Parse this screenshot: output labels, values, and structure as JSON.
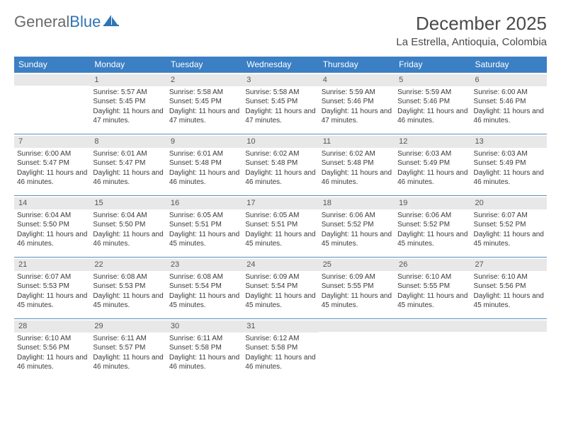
{
  "logo": {
    "text1": "General",
    "text2": "Blue"
  },
  "header": {
    "month_title": "December 2025",
    "location": "La Estrella, Antioquia, Colombia"
  },
  "colors": {
    "header_bg": "#3b7fc4",
    "header_text": "#ffffff",
    "row_border": "#5a8fc0",
    "daynum_bg": "#e8e8e8",
    "text": "#3a3a3a",
    "logo_gray": "#6a6a6a",
    "logo_blue": "#2f74b5",
    "page_bg": "#ffffff"
  },
  "day_headers": [
    "Sunday",
    "Monday",
    "Tuesday",
    "Wednesday",
    "Thursday",
    "Friday",
    "Saturday"
  ],
  "weeks": [
    [
      {
        "day": "",
        "sunrise": "",
        "sunset": "",
        "daylight": ""
      },
      {
        "day": "1",
        "sunrise": "Sunrise: 5:57 AM",
        "sunset": "Sunset: 5:45 PM",
        "daylight": "Daylight: 11 hours and 47 minutes."
      },
      {
        "day": "2",
        "sunrise": "Sunrise: 5:58 AM",
        "sunset": "Sunset: 5:45 PM",
        "daylight": "Daylight: 11 hours and 47 minutes."
      },
      {
        "day": "3",
        "sunrise": "Sunrise: 5:58 AM",
        "sunset": "Sunset: 5:45 PM",
        "daylight": "Daylight: 11 hours and 47 minutes."
      },
      {
        "day": "4",
        "sunrise": "Sunrise: 5:59 AM",
        "sunset": "Sunset: 5:46 PM",
        "daylight": "Daylight: 11 hours and 47 minutes."
      },
      {
        "day": "5",
        "sunrise": "Sunrise: 5:59 AM",
        "sunset": "Sunset: 5:46 PM",
        "daylight": "Daylight: 11 hours and 46 minutes."
      },
      {
        "day": "6",
        "sunrise": "Sunrise: 6:00 AM",
        "sunset": "Sunset: 5:46 PM",
        "daylight": "Daylight: 11 hours and 46 minutes."
      }
    ],
    [
      {
        "day": "7",
        "sunrise": "Sunrise: 6:00 AM",
        "sunset": "Sunset: 5:47 PM",
        "daylight": "Daylight: 11 hours and 46 minutes."
      },
      {
        "day": "8",
        "sunrise": "Sunrise: 6:01 AM",
        "sunset": "Sunset: 5:47 PM",
        "daylight": "Daylight: 11 hours and 46 minutes."
      },
      {
        "day": "9",
        "sunrise": "Sunrise: 6:01 AM",
        "sunset": "Sunset: 5:48 PM",
        "daylight": "Daylight: 11 hours and 46 minutes."
      },
      {
        "day": "10",
        "sunrise": "Sunrise: 6:02 AM",
        "sunset": "Sunset: 5:48 PM",
        "daylight": "Daylight: 11 hours and 46 minutes."
      },
      {
        "day": "11",
        "sunrise": "Sunrise: 6:02 AM",
        "sunset": "Sunset: 5:48 PM",
        "daylight": "Daylight: 11 hours and 46 minutes."
      },
      {
        "day": "12",
        "sunrise": "Sunrise: 6:03 AM",
        "sunset": "Sunset: 5:49 PM",
        "daylight": "Daylight: 11 hours and 46 minutes."
      },
      {
        "day": "13",
        "sunrise": "Sunrise: 6:03 AM",
        "sunset": "Sunset: 5:49 PM",
        "daylight": "Daylight: 11 hours and 46 minutes."
      }
    ],
    [
      {
        "day": "14",
        "sunrise": "Sunrise: 6:04 AM",
        "sunset": "Sunset: 5:50 PM",
        "daylight": "Daylight: 11 hours and 46 minutes."
      },
      {
        "day": "15",
        "sunrise": "Sunrise: 6:04 AM",
        "sunset": "Sunset: 5:50 PM",
        "daylight": "Daylight: 11 hours and 46 minutes."
      },
      {
        "day": "16",
        "sunrise": "Sunrise: 6:05 AM",
        "sunset": "Sunset: 5:51 PM",
        "daylight": "Daylight: 11 hours and 45 minutes."
      },
      {
        "day": "17",
        "sunrise": "Sunrise: 6:05 AM",
        "sunset": "Sunset: 5:51 PM",
        "daylight": "Daylight: 11 hours and 45 minutes."
      },
      {
        "day": "18",
        "sunrise": "Sunrise: 6:06 AM",
        "sunset": "Sunset: 5:52 PM",
        "daylight": "Daylight: 11 hours and 45 minutes."
      },
      {
        "day": "19",
        "sunrise": "Sunrise: 6:06 AM",
        "sunset": "Sunset: 5:52 PM",
        "daylight": "Daylight: 11 hours and 45 minutes."
      },
      {
        "day": "20",
        "sunrise": "Sunrise: 6:07 AM",
        "sunset": "Sunset: 5:52 PM",
        "daylight": "Daylight: 11 hours and 45 minutes."
      }
    ],
    [
      {
        "day": "21",
        "sunrise": "Sunrise: 6:07 AM",
        "sunset": "Sunset: 5:53 PM",
        "daylight": "Daylight: 11 hours and 45 minutes."
      },
      {
        "day": "22",
        "sunrise": "Sunrise: 6:08 AM",
        "sunset": "Sunset: 5:53 PM",
        "daylight": "Daylight: 11 hours and 45 minutes."
      },
      {
        "day": "23",
        "sunrise": "Sunrise: 6:08 AM",
        "sunset": "Sunset: 5:54 PM",
        "daylight": "Daylight: 11 hours and 45 minutes."
      },
      {
        "day": "24",
        "sunrise": "Sunrise: 6:09 AM",
        "sunset": "Sunset: 5:54 PM",
        "daylight": "Daylight: 11 hours and 45 minutes."
      },
      {
        "day": "25",
        "sunrise": "Sunrise: 6:09 AM",
        "sunset": "Sunset: 5:55 PM",
        "daylight": "Daylight: 11 hours and 45 minutes."
      },
      {
        "day": "26",
        "sunrise": "Sunrise: 6:10 AM",
        "sunset": "Sunset: 5:55 PM",
        "daylight": "Daylight: 11 hours and 45 minutes."
      },
      {
        "day": "27",
        "sunrise": "Sunrise: 6:10 AM",
        "sunset": "Sunset: 5:56 PM",
        "daylight": "Daylight: 11 hours and 45 minutes."
      }
    ],
    [
      {
        "day": "28",
        "sunrise": "Sunrise: 6:10 AM",
        "sunset": "Sunset: 5:56 PM",
        "daylight": "Daylight: 11 hours and 46 minutes."
      },
      {
        "day": "29",
        "sunrise": "Sunrise: 6:11 AM",
        "sunset": "Sunset: 5:57 PM",
        "daylight": "Daylight: 11 hours and 46 minutes."
      },
      {
        "day": "30",
        "sunrise": "Sunrise: 6:11 AM",
        "sunset": "Sunset: 5:58 PM",
        "daylight": "Daylight: 11 hours and 46 minutes."
      },
      {
        "day": "31",
        "sunrise": "Sunrise: 6:12 AM",
        "sunset": "Sunset: 5:58 PM",
        "daylight": "Daylight: 11 hours and 46 minutes."
      },
      {
        "day": "",
        "sunrise": "",
        "sunset": "",
        "daylight": ""
      },
      {
        "day": "",
        "sunrise": "",
        "sunset": "",
        "daylight": ""
      },
      {
        "day": "",
        "sunrise": "",
        "sunset": "",
        "daylight": ""
      }
    ]
  ]
}
